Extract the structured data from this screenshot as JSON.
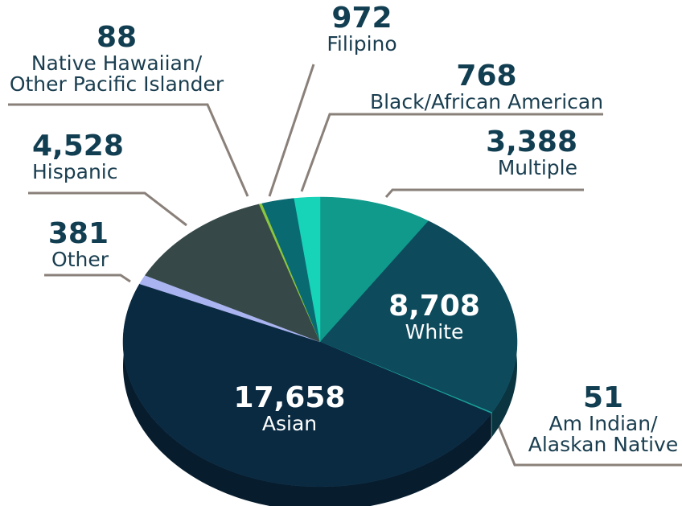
{
  "chart_data": {
    "type": "pie",
    "categories": [
      "Multiple",
      "White",
      "Am Indian/\nAlaskan Native",
      "Asian",
      "Other",
      "Hispanic",
      "Native Hawaiian/\nOther Pacific Islander",
      "Filipino",
      "Black/African American"
    ],
    "values": [
      3388,
      8708,
      51,
      17658,
      381,
      4528,
      88,
      972,
      768
    ],
    "value_labels": [
      "3,388",
      "8,708",
      "51",
      "17,658",
      "381",
      "4,528",
      "88",
      "972",
      "768"
    ],
    "colors": [
      "#0f9a8c",
      "#0d4a5c",
      "#1aa39a",
      "#0a2a42",
      "#a9b4f0",
      "#374848",
      "#8cc63f",
      "#0a6a72",
      "#17d4b8"
    ]
  }
}
